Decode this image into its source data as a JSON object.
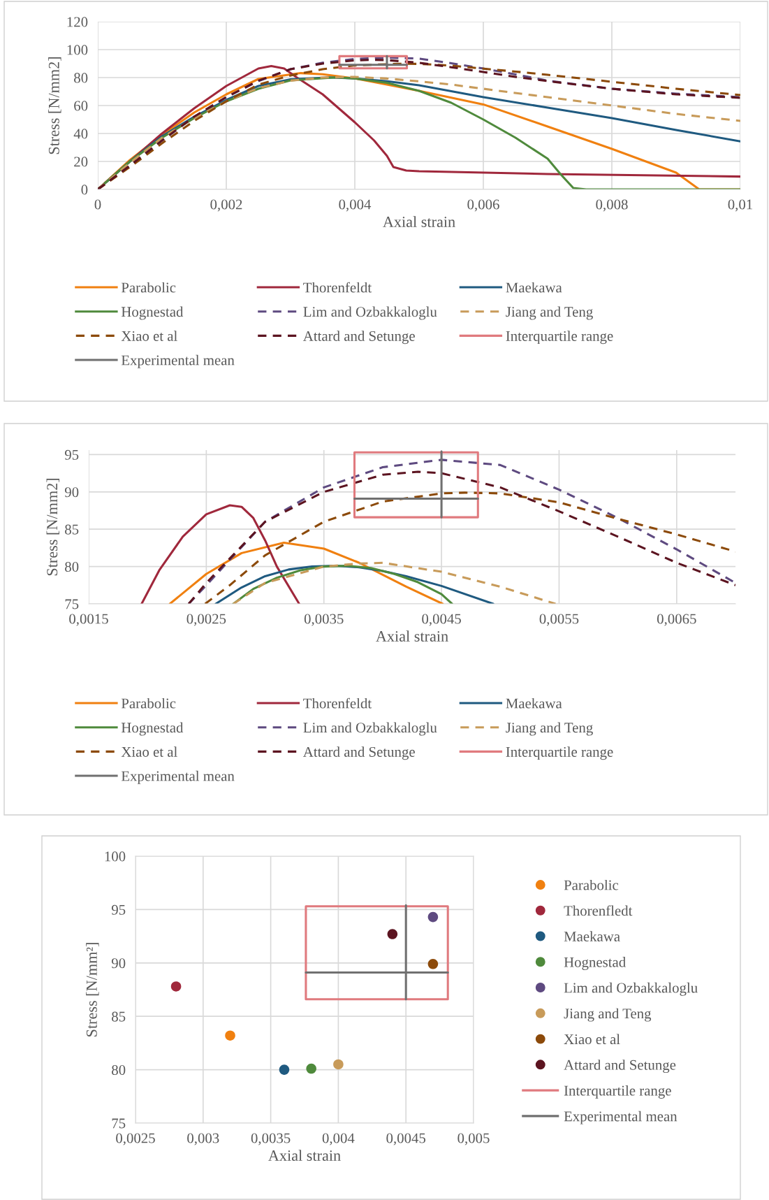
{
  "chart_data": [
    {
      "type": "line",
      "xlabel": "Axial strain",
      "ylabel": "Stress [N/mm2]",
      "xlim": [
        0,
        0.01
      ],
      "xticks": [
        0,
        {
          "value": 0.002,
          "label": "0,002"
        },
        {
          "value": 0.004,
          "label": "0,004"
        },
        {
          "value": 0.006,
          "label": "0,006"
        },
        {
          "value": 0.008,
          "label": "0,008"
        },
        {
          "value": 0.01,
          "label": "0,01"
        }
      ],
      "ylim": [
        0,
        120
      ],
      "yticks": [
        0,
        20,
        40,
        60,
        80,
        100,
        120
      ],
      "grid": true,
      "legend": "bottom",
      "series": [
        {
          "name": "Parabolic",
          "color": "#f08010",
          "x": [
            0,
            0.0005,
            0.001,
            0.0015,
            0.002,
            0.0025,
            0.00316,
            0.0035,
            0.004,
            0.0045,
            0.005,
            0.006,
            0.007,
            0.008,
            0.009,
            0.00936,
            0.01
          ],
          "values": [
            0,
            21,
            39,
            55,
            68,
            79,
            83.2,
            82.4,
            79.4,
            75,
            70.5,
            60.8,
            45,
            29,
            12,
            0,
            0
          ]
        },
        {
          "name": "Thorenfeldt",
          "color": "#a0283c",
          "x": [
            0,
            0.0005,
            0.001,
            0.0015,
            0.002,
            0.0025,
            0.0027,
            0.0029,
            0.0031,
            0.0035,
            0.004,
            0.0043,
            0.0045,
            0.0046,
            0.0048,
            0.005,
            0.007,
            0.01
          ],
          "values": [
            0,
            20,
            40,
            58,
            74,
            86.5,
            88.2,
            86.5,
            80,
            68,
            48,
            35,
            24,
            16,
            13.5,
            13,
            11,
            9.2
          ]
        },
        {
          "name": "Maekawa",
          "color": "#1f5a80",
          "x": [
            0,
            0.0005,
            0.001,
            0.0015,
            0.002,
            0.0025,
            0.003,
            0.0036,
            0.004,
            0.0045,
            0.005,
            0.006,
            0.007,
            0.008,
            0.009,
            0.01
          ],
          "values": [
            0,
            20,
            38,
            52,
            64,
            74,
            78.7,
            80.1,
            79.4,
            77.4,
            74.5,
            66,
            58.5,
            51,
            42.5,
            34.4
          ]
        },
        {
          "name": "Hognestad",
          "color": "#4f8a3c",
          "x": [
            0,
            0.0005,
            0.001,
            0.0015,
            0.002,
            0.0025,
            0.003,
            0.0037,
            0.004,
            0.0045,
            0.005,
            0.0055,
            0.006,
            0.0065,
            0.007,
            0.0072,
            0.0074,
            0.0076,
            0.01
          ],
          "values": [
            0,
            20,
            37,
            51,
            63,
            72,
            78,
            80.1,
            79.4,
            76.3,
            70.5,
            62,
            50,
            37,
            22,
            11,
            1,
            0,
            0
          ]
        },
        {
          "name": "Lim and Ozbakkaloglu",
          "color": "#5e4a80",
          "line_style": "dashed",
          "x": [
            0,
            0.0005,
            0.001,
            0.0015,
            0.002,
            0.0025,
            0.003,
            0.0035,
            0.004,
            0.0045,
            0.005,
            0.0055,
            0.006,
            0.0065,
            0.007,
            0.008,
            0.009,
            0.01
          ],
          "values": [
            0,
            17,
            35,
            52,
            66,
            77.5,
            86,
            90.6,
            93.3,
            94.3,
            93.6,
            90.3,
            86.5,
            82.3,
            77.8,
            72,
            68.5,
            66
          ]
        },
        {
          "name": "Jiang and Teng",
          "color": "#c89b5a",
          "line_style": "dashed",
          "x": [
            0,
            0.0005,
            0.001,
            0.0015,
            0.002,
            0.0025,
            0.003,
            0.0035,
            0.004,
            0.0045,
            0.005,
            0.0055,
            0.006,
            0.007,
            0.008,
            0.009,
            0.01
          ],
          "values": [
            0,
            19,
            37,
            51,
            63,
            72.5,
            77.8,
            80,
            80.5,
            79.3,
            77.3,
            75,
            72,
            66,
            60,
            54,
            49
          ]
        },
        {
          "name": "Xiao et al",
          "color": "#8c4a0a",
          "line_style": "dashed",
          "x": [
            0,
            0.0005,
            0.001,
            0.0015,
            0.002,
            0.0025,
            0.003,
            0.0035,
            0.004,
            0.0047,
            0.005,
            0.0055,
            0.006,
            0.0065,
            0.007,
            0.008,
            0.009,
            0.01
          ],
          "values": [
            0,
            16,
            33,
            49,
            63,
            75,
            81.5,
            86,
            88.7,
            89.9,
            89.8,
            88.6,
            86.4,
            84.3,
            82,
            77,
            72,
            67.5
          ]
        },
        {
          "name": "Attard and Setunge",
          "color": "#5c1420",
          "line_style": "dashed",
          "x": [
            0,
            0.0005,
            0.001,
            0.0015,
            0.002,
            0.0025,
            0.003,
            0.0035,
            0.004,
            0.0043,
            0.0045,
            0.005,
            0.0055,
            0.006,
            0.0065,
            0.007,
            0.008,
            0.009,
            0.01
          ],
          "values": [
            0,
            17,
            35,
            52,
            66,
            77.8,
            86,
            90,
            92.3,
            92.7,
            92.5,
            90.6,
            87.4,
            84,
            80.5,
            77.5,
            72,
            68,
            65.5
          ]
        },
        {
          "name": "Interquartile range",
          "color": "#e07a7e",
          "x": [
            0.00376,
            0.00376,
            0.00481,
            null,
            0.00481,
            0.00481,
            0.00376
          ],
          "values": [
            86.6,
            95.3,
            95.3,
            null,
            95.3,
            86.6,
            86.6
          ]
        },
        {
          "name": "Experimental mean",
          "color": "#707070",
          "x": [
            0.00376,
            0.00481,
            null,
            0.0045,
            0.0045
          ],
          "values": [
            89.1,
            89.1,
            null,
            86.6,
            95.4
          ]
        }
      ]
    },
    {
      "type": "line",
      "xlabel": "Axial strain",
      "ylabel": "Stress [N/mm2]",
      "xlim": [
        0.0015,
        0.007
      ],
      "xticks": [
        {
          "value": 0.0015,
          "label": "0,0015"
        },
        {
          "value": 0.0025,
          "label": "0,0025"
        },
        {
          "value": 0.0035,
          "label": "0,0035"
        },
        {
          "value": 0.0045,
          "label": "0,0045"
        },
        {
          "value": 0.0055,
          "label": "0,0055"
        },
        {
          "value": 0.0065,
          "label": "0,0065"
        }
      ],
      "ylim": [
        75,
        95.6
      ],
      "yticks": [
        75,
        80,
        85,
        90,
        95
      ],
      "grid": true,
      "legend": "bottom",
      "series": [
        {
          "name": "Parabolic",
          "color": "#f08010",
          "x": [
            0.00219,
            0.0025,
            0.0028,
            0.00316,
            0.0035,
            0.0038,
            0.004,
            0.0042,
            0.00451
          ],
          "values": [
            75,
            79,
            81.8,
            83.2,
            82.4,
            80.5,
            78.9,
            77.3,
            75
          ]
        },
        {
          "name": "Thorenfeldt",
          "color": "#a0283c",
          "x": [
            0.00195,
            0.0021,
            0.0023,
            0.0025,
            0.0027,
            0.0028,
            0.0029,
            0.003,
            0.0031,
            0.00329
          ],
          "values": [
            75,
            79.5,
            84,
            87,
            88.2,
            88,
            86.5,
            83.5,
            80,
            75
          ]
        },
        {
          "name": "Maekawa",
          "color": "#1f5a80",
          "x": [
            0.00258,
            0.0028,
            0.003,
            0.0032,
            0.0034,
            0.0036,
            0.0038,
            0.004,
            0.0042,
            0.0045,
            0.00494
          ],
          "values": [
            75,
            77.2,
            78.7,
            79.6,
            80,
            80.1,
            79.9,
            79.4,
            78.7,
            77.4,
            75
          ]
        },
        {
          "name": "Hognestad",
          "color": "#4f8a3c",
          "x": [
            0.00273,
            0.0029,
            0.0031,
            0.0033,
            0.0035,
            0.0037,
            0.0039,
            0.0041,
            0.0043,
            0.0045,
            0.00459
          ],
          "values": [
            75,
            77,
            78.5,
            79.5,
            80,
            80.1,
            79.8,
            79,
            77.9,
            76.3,
            75
          ]
        },
        {
          "name": "Lim and Ozbakkaloglu",
          "color": "#5e4a80",
          "line_style": "dashed",
          "x": [
            0.00235,
            0.0025,
            0.003,
            0.0035,
            0.004,
            0.0045,
            0.005,
            0.0055,
            0.006,
            0.0065,
            0.007
          ],
          "values": [
            75,
            77.5,
            86,
            90.6,
            93.3,
            94.3,
            93.6,
            90.3,
            86.5,
            82.3,
            77.8
          ]
        },
        {
          "name": "Jiang and Teng",
          "color": "#c89b5a",
          "line_style": "dashed",
          "x": [
            0.00273,
            0.003,
            0.0035,
            0.0038,
            0.004,
            0.0045,
            0.005,
            0.00547
          ],
          "values": [
            75,
            77.8,
            80,
            80.4,
            80.5,
            79.3,
            77.3,
            75
          ]
        },
        {
          "name": "Xiao et al",
          "color": "#8c4a0a",
          "line_style": "dashed",
          "x": [
            0.00249,
            0.0027,
            0.003,
            0.0035,
            0.004,
            0.0045,
            0.0047,
            0.005,
            0.0055,
            0.006,
            0.0065,
            0.007
          ],
          "values": [
            75,
            77.5,
            81.5,
            86,
            88.7,
            89.8,
            89.9,
            89.8,
            88.6,
            86.4,
            84.3,
            82
          ]
        },
        {
          "name": "Attard and Setunge",
          "color": "#5c1420",
          "line_style": "dashed",
          "x": [
            0.00235,
            0.0025,
            0.003,
            0.0035,
            0.004,
            0.0043,
            0.0045,
            0.005,
            0.0055,
            0.006,
            0.0065,
            0.007
          ],
          "values": [
            75,
            77.8,
            86,
            90,
            92.3,
            92.7,
            92.5,
            90.6,
            87.4,
            84,
            80.5,
            77.5
          ]
        },
        {
          "name": "Interquartile range",
          "color": "#e07a7e",
          "x": [
            0.00376,
            0.00376,
            0.00481,
            null,
            0.00481,
            0.00481,
            0.00376
          ],
          "values": [
            86.6,
            95.3,
            95.3,
            null,
            95.3,
            86.6,
            86.6
          ]
        },
        {
          "name": "Experimental mean",
          "color": "#707070",
          "x": [
            0.00376,
            0.00481,
            null,
            0.0045,
            0.0045
          ],
          "values": [
            89.1,
            89.1,
            null,
            86.6,
            95.4
          ]
        }
      ]
    },
    {
      "type": "scatter",
      "xlabel": "Axial strain",
      "ylabel": "Stress [N/mm²]",
      "xlim": [
        0.0025,
        0.005
      ],
      "xticks": [
        {
          "value": 0.0025,
          "label": "0,0025"
        },
        {
          "value": 0.003,
          "label": "0,003"
        },
        {
          "value": 0.0035,
          "label": "0,0035"
        },
        {
          "value": 0.004,
          "label": "0,004"
        },
        {
          "value": 0.0045,
          "label": "0,0045"
        },
        {
          "value": 0.005,
          "label": "0,005"
        }
      ],
      "ylim": [
        75,
        100
      ],
      "yticks": [
        75,
        80,
        85,
        90,
        95,
        100
      ],
      "grid": true,
      "legend": "right",
      "marker": "circle",
      "series": [
        {
          "name": "Parabolic",
          "color": "#f08010",
          "x": [
            0.0032
          ],
          "values": [
            83.2
          ]
        },
        {
          "name": "Thorenfledt",
          "color": "#a0283c",
          "x": [
            0.0028
          ],
          "values": [
            87.8
          ]
        },
        {
          "name": "Maekawa",
          "color": "#1f5a80",
          "x": [
            0.0036
          ],
          "values": [
            80.0
          ]
        },
        {
          "name": "Hognestad",
          "color": "#4f8a3c",
          "x": [
            0.0038
          ],
          "values": [
            80.1
          ]
        },
        {
          "name": "Lim and Ozbakkaloglu",
          "color": "#5e4a80",
          "x": [
            0.0047
          ],
          "values": [
            94.3
          ]
        },
        {
          "name": "Jiang and Teng",
          "color": "#c89b5a",
          "x": [
            0.004
          ],
          "values": [
            80.5
          ]
        },
        {
          "name": "Xiao et al",
          "color": "#8c4a0a",
          "x": [
            0.0047
          ],
          "values": [
            89.9
          ]
        },
        {
          "name": "Attard and Setunge",
          "color": "#5c1420",
          "x": [
            0.0044
          ],
          "values": [
            92.7
          ]
        },
        {
          "name": "Interquartile range",
          "type": "line",
          "marker": "none",
          "color": "#e07a7e",
          "x": [
            0.00376,
            0.00376,
            0.00481,
            null,
            0.00481,
            0.00481,
            0.00376
          ],
          "values": [
            86.6,
            95.3,
            95.3,
            null,
            95.3,
            86.6,
            86.6
          ]
        },
        {
          "name": "Experimental mean",
          "type": "line",
          "marker": "none",
          "color": "#707070",
          "x": [
            0.00376,
            0.00481,
            null,
            0.0045,
            0.0045
          ],
          "values": [
            89.1,
            89.1,
            null,
            86.6,
            95.4
          ]
        }
      ]
    }
  ]
}
